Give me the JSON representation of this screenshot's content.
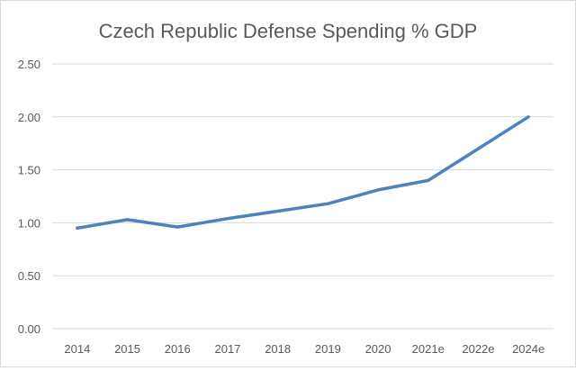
{
  "chart_data": {
    "type": "line",
    "title": "Czech Republic Defense Spending % GDP",
    "xlabel": "",
    "ylabel": "",
    "categories": [
      "2014",
      "2015",
      "2016",
      "2017",
      "2018",
      "2019",
      "2020",
      "2021e",
      "2022e",
      "2024e"
    ],
    "series": [
      {
        "name": "Defense Spending % GDP",
        "values": [
          0.95,
          1.03,
          0.96,
          1.04,
          1.11,
          1.18,
          1.31,
          1.4,
          1.7,
          2.0
        ],
        "color": "#4f81bd"
      }
    ],
    "ylim": [
      0,
      2.5
    ],
    "yticks": [
      "0.00",
      "0.50",
      "1.00",
      "1.50",
      "2.00",
      "2.50"
    ],
    "grid": true,
    "legend": "none"
  }
}
